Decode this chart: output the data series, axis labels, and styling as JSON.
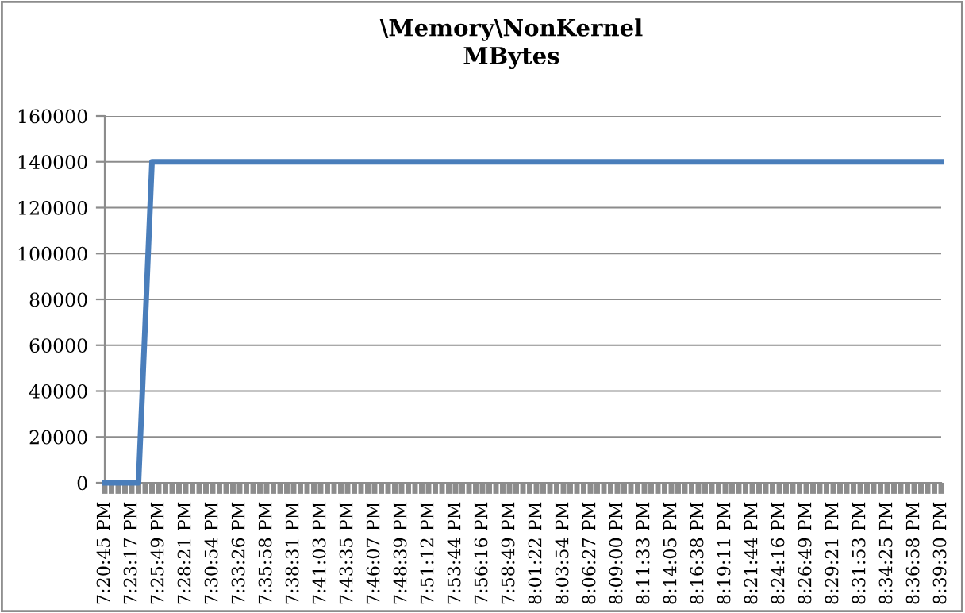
{
  "chart_data": {
    "type": "line",
    "title": "\\Memory\\NonKernel\nMBytes",
    "categories": [
      "7:20:45 PM",
      null,
      null,
      null,
      "7:23:17 PM",
      null,
      null,
      null,
      "7:25:49 PM",
      null,
      null,
      null,
      "7:28:21 PM",
      null,
      null,
      null,
      "7:30:54 PM",
      null,
      null,
      null,
      "7:33:26 PM",
      null,
      null,
      null,
      "7:35:58 PM",
      null,
      null,
      null,
      "7:38:31 PM",
      null,
      null,
      null,
      "7:41:03 PM",
      null,
      null,
      null,
      "7:43:35 PM",
      null,
      null,
      null,
      "7:46:07 PM",
      null,
      null,
      null,
      "7:48:39 PM",
      null,
      null,
      null,
      "7:51:12 PM",
      null,
      null,
      null,
      "7:53:44 PM",
      null,
      null,
      null,
      "7:56:16 PM",
      null,
      null,
      null,
      "7:58:49 PM",
      null,
      null,
      null,
      "8:01:22 PM",
      null,
      null,
      null,
      "8:03:54 PM",
      null,
      null,
      null,
      "8:06:27 PM",
      null,
      null,
      null,
      "8:09:00 PM",
      null,
      null,
      null,
      "8:11:33 PM",
      null,
      null,
      null,
      "8:14:05 PM",
      null,
      null,
      null,
      "8:16:38 PM",
      null,
      null,
      null,
      "8:19:11 PM",
      null,
      null,
      null,
      "8:21:44 PM",
      null,
      null,
      null,
      "8:24:16 PM",
      null,
      null,
      null,
      "8:26:49 PM",
      null,
      null,
      null,
      "8:29:21 PM",
      null,
      null,
      null,
      "8:31:53 PM",
      null,
      null,
      null,
      "8:34:25 PM",
      null,
      null,
      null,
      "8:36:58 PM",
      null,
      null,
      null,
      "8:39:30 PM"
    ],
    "series": [
      {
        "color": "#4a7ebb",
        "values": [
          0,
          0,
          0,
          0,
          0,
          0,
          70000,
          140000,
          140000,
          140000,
          140000,
          140000,
          140000,
          140000,
          140000,
          140000,
          140000,
          140000,
          140000,
          140000,
          140000,
          140000,
          140000,
          140000,
          140000,
          140000,
          140000,
          140000,
          140000,
          140000,
          140000,
          140000,
          140000,
          140000,
          140000,
          140000,
          140000,
          140000,
          140000,
          140000,
          140000,
          140000,
          140000,
          140000,
          140000,
          140000,
          140000,
          140000,
          140000,
          140000,
          140000,
          140000,
          140000,
          140000,
          140000,
          140000,
          140000,
          140000,
          140000,
          140000,
          140000,
          140000,
          140000,
          140000,
          140000,
          140000,
          140000,
          140000,
          140000,
          140000,
          140000,
          140000,
          140000,
          140000,
          140000,
          140000,
          140000,
          140000,
          140000,
          140000,
          140000,
          140000,
          140000,
          140000,
          140000,
          140000,
          140000,
          140000,
          140000,
          140000,
          140000,
          140000,
          140000,
          140000,
          140000,
          140000,
          140000,
          140000,
          140000,
          140000,
          140000,
          140000,
          140000,
          140000,
          140000,
          140000,
          140000,
          140000,
          140000,
          140000,
          140000,
          140000,
          140000,
          140000,
          140000,
          140000,
          140000,
          140000,
          140000,
          140000,
          140000,
          140000,
          140000,
          140000,
          140000
        ]
      }
    ],
    "ylim": [
      0,
      160000
    ],
    "yticks": [
      0,
      20000,
      40000,
      60000,
      80000,
      100000,
      120000,
      140000,
      160000
    ],
    "grid": "y",
    "legend": false,
    "marker": "none",
    "line_style": "solid"
  }
}
